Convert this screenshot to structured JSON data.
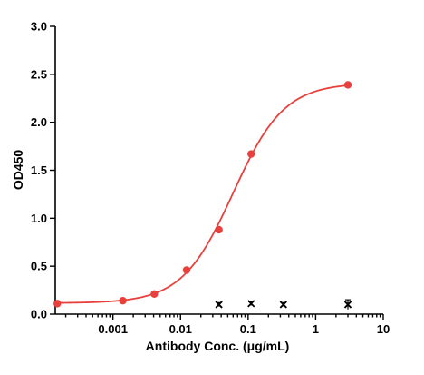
{
  "chart_data": {
    "type": "scatter",
    "xlabel": "Antibody Conc. (μg/mL)",
    "ylabel": "OD450",
    "xscale": "log",
    "xlim": [
      0.00014,
      10
    ],
    "ylim": [
      0,
      3.0
    ],
    "x_ticks": [
      0.001,
      0.01,
      0.1,
      1,
      10
    ],
    "x_tick_labels": [
      "0.001",
      "0.01",
      "0.1",
      "1",
      "10"
    ],
    "y_ticks": [
      0,
      0.5,
      1.0,
      1.5,
      2.0,
      2.5,
      3.0
    ],
    "y_tick_labels": [
      "0.0",
      "0.5",
      "1.0",
      "1.5",
      "2.0",
      "2.5",
      "3.0"
    ],
    "grid": false,
    "series": [
      {
        "color": "#e8413d",
        "marker": "circle",
        "fit": "4PL",
        "x": [
          0.00015,
          0.0014,
          0.0041,
          0.0123,
          0.037,
          0.111,
          3.0
        ],
        "y": [
          0.11,
          0.14,
          0.21,
          0.46,
          0.88,
          1.67,
          2.39
        ]
      },
      {
        "color": "#000000",
        "marker": "x",
        "x": [
          0.037,
          0.111,
          0.333,
          3.0
        ],
        "y": [
          0.1,
          0.11,
          0.1,
          0.1
        ],
        "y_err": [
          0.02,
          0.02,
          0.02,
          0.05
        ]
      }
    ],
    "fit_curve": {
      "bottom": 0.115,
      "top": 2.41,
      "ec50": 0.06,
      "hill": 1.15
    }
  }
}
